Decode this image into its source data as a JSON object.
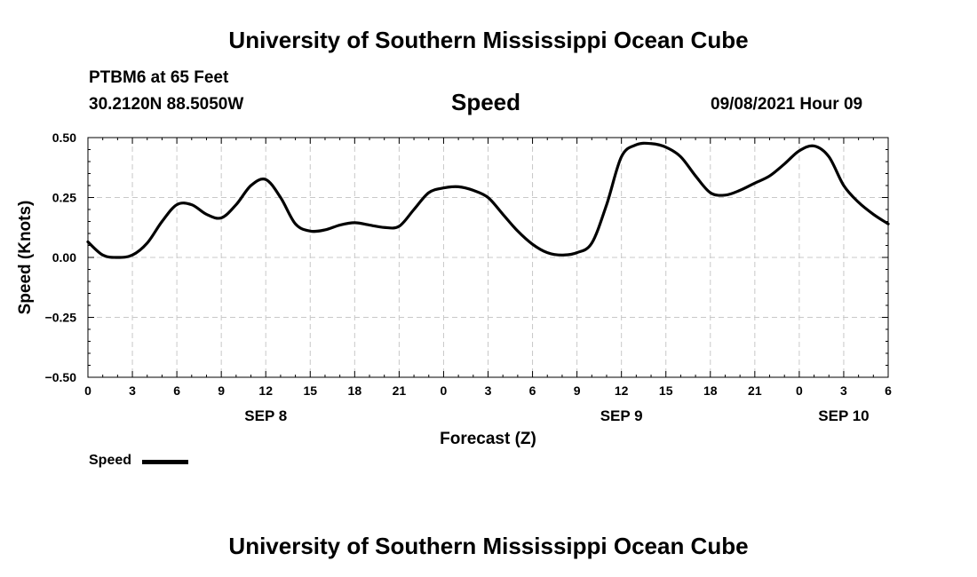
{
  "header": {
    "title": "University of Southern Mississippi Ocean Cube",
    "station": "PTBM6 at 65 Feet",
    "coords": "30.2120N  88.5050W",
    "variable": "Speed",
    "timestamp": "09/08/2021 Hour 09"
  },
  "footer": {
    "title": "University of Southern Mississippi Ocean Cube"
  },
  "legend": {
    "label": "Speed"
  },
  "chart_data": {
    "type": "line",
    "title": "Speed",
    "xlabel": "Forecast (Z)",
    "ylabel": "Speed (Knots)",
    "xlim": [
      0,
      54
    ],
    "ylim": [
      -0.5,
      0.5
    ],
    "grid": true,
    "x_unit": "hours since SEP 8 00Z",
    "y_ticks": [
      0.5,
      0.25,
      0.0,
      -0.25,
      -0.5
    ],
    "y_tick_labels": [
      "0.50",
      "0.25",
      "0.00",
      "−0.25",
      "−0.50"
    ],
    "x_ticks": [
      0,
      3,
      6,
      9,
      12,
      15,
      18,
      21,
      24,
      27,
      30,
      33,
      36,
      39,
      42,
      45,
      48,
      51,
      54
    ],
    "x_tick_labels": [
      "0",
      "3",
      "6",
      "9",
      "12",
      "15",
      "18",
      "21",
      "0",
      "3",
      "6",
      "9",
      "12",
      "15",
      "18",
      "21",
      "0",
      "3",
      "6"
    ],
    "date_labels": [
      {
        "x": 12,
        "label": "SEP 8"
      },
      {
        "x": 36,
        "label": "SEP 9"
      },
      {
        "x": 51,
        "label": "SEP 10"
      }
    ],
    "series": [
      {
        "name": "Speed",
        "color": "#000000",
        "x": [
          0,
          1,
          2,
          3,
          4,
          5,
          6,
          7,
          8,
          9,
          10,
          11,
          12,
          13,
          14,
          15,
          16,
          17,
          18,
          19,
          20,
          21,
          22,
          23,
          24,
          25,
          26,
          27,
          28,
          29,
          30,
          31,
          32,
          33,
          34,
          35,
          36,
          37,
          38,
          39,
          40,
          41,
          42,
          43,
          44,
          45,
          46,
          47,
          48,
          49,
          50,
          51,
          52,
          53,
          54
        ],
        "values": [
          0.065,
          0.01,
          0.0,
          0.01,
          0.06,
          0.15,
          0.22,
          0.22,
          0.18,
          0.165,
          0.22,
          0.3,
          0.325,
          0.25,
          0.14,
          0.11,
          0.115,
          0.135,
          0.145,
          0.135,
          0.125,
          0.13,
          0.2,
          0.27,
          0.29,
          0.295,
          0.28,
          0.25,
          0.18,
          0.11,
          0.055,
          0.02,
          0.01,
          0.02,
          0.06,
          0.22,
          0.42,
          0.47,
          0.475,
          0.46,
          0.42,
          0.34,
          0.27,
          0.26,
          0.28,
          0.31,
          0.34,
          0.39,
          0.445,
          0.465,
          0.42,
          0.3,
          0.23,
          0.18,
          0.14
        ]
      }
    ]
  }
}
